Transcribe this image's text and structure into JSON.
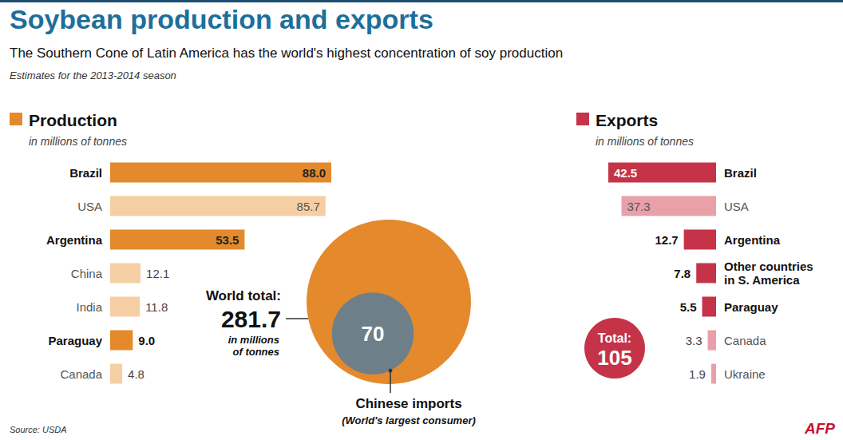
{
  "header": {
    "title": "Soybean production and exports",
    "subtitle": "The Southern Cone of Latin America has the world's highest concentration of soy production",
    "note": "Estimates for the 2013-2014 season"
  },
  "footer": {
    "source": "Source: USDA",
    "credit": "AFP"
  },
  "chart_data": [
    {
      "type": "bar",
      "orientation": "horizontal",
      "title": "Production",
      "subtitle": "in millions of tonnes",
      "color": "#e48a2c",
      "categories": [
        "Brazil",
        "USA",
        "Argentina",
        "China",
        "India",
        "Paraguay",
        "Canada"
      ],
      "values": [
        88,
        85.7,
        53.5,
        12.1,
        11.8,
        9,
        4.8
      ],
      "value_labels": [
        "88.0",
        "85.7",
        "53.5",
        "12.1",
        "11.8",
        "9.0",
        "4.8"
      ],
      "colors": [
        "#e48a2c",
        "#f5cfa3",
        "#e48a2c",
        "#f5cfa3",
        "#f5cfa3",
        "#e48a2c",
        "#f5cfa3"
      ],
      "xlim": [
        0,
        88
      ],
      "data_labels": true,
      "tick_labels": "y",
      "grid": false
    },
    {
      "type": "bar",
      "orientation": "horizontal",
      "title": "Exports",
      "subtitle": "in millions of tonnes",
      "color": "#c53349",
      "categories": [
        "Brazil",
        "USA",
        "Argentina",
        "Other countries in S. America",
        "Paraguay",
        "Canada",
        "Ukraine"
      ],
      "values": [
        42.5,
        37.3,
        12.7,
        7.8,
        5.5,
        3.3,
        1.9
      ],
      "colors": [
        "#c53349",
        "#e8a0a9",
        "#c53349",
        "#c53349",
        "#c53349",
        "#e8a0a9",
        "#e8a0a9"
      ],
      "xlim": [
        0,
        42.5
      ],
      "data_labels": true,
      "tick_labels": "y",
      "grid": false,
      "total": {
        "label": "Total:",
        "value": 105
      }
    },
    {
      "type": "bubble",
      "data_labels": true,
      "series": [
        {
          "name": "World total:",
          "values": [
            281.7
          ],
          "note": "in millions of tonnes",
          "color": "#e48a2c"
        },
        {
          "name": "Chinese imports",
          "values": [
            70
          ],
          "note": "(World's largest consumer)",
          "color": "#6e7f8a"
        }
      ]
    }
  ]
}
